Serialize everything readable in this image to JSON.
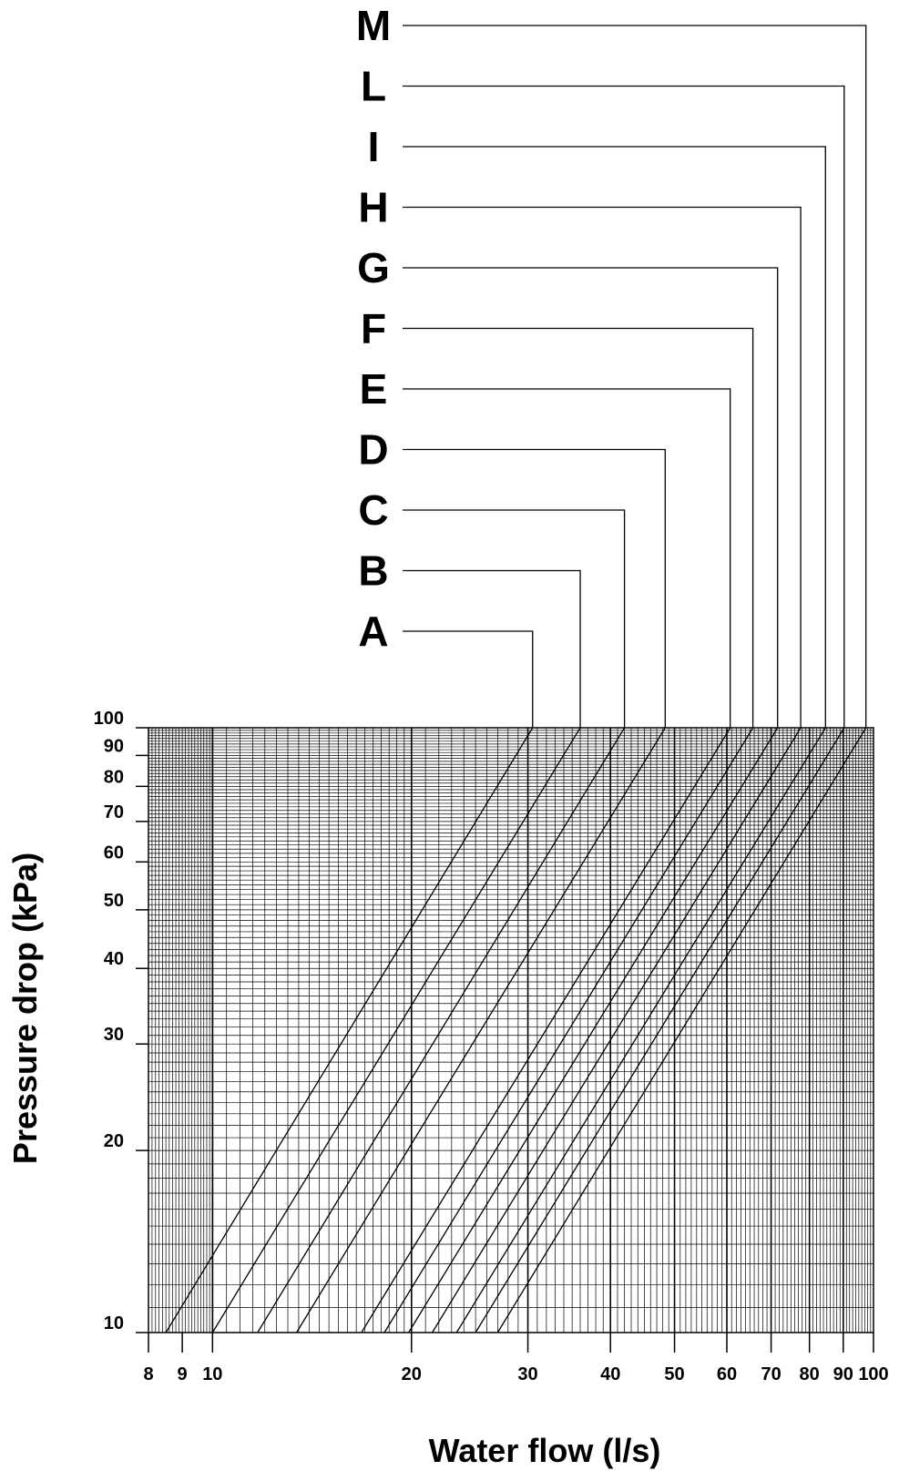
{
  "chart_data": {
    "type": "line",
    "xscale": "log",
    "yscale": "log",
    "xlabel": "Water flow (l/s)",
    "ylabel": "Pressure drop (kPa)",
    "xlim": [
      8,
      100
    ],
    "ylim": [
      10,
      100
    ],
    "grid": true,
    "x_ticks": [
      "8",
      "9",
      "10",
      "20",
      "30",
      "40",
      "50",
      "60",
      "70",
      "80",
      "90",
      "100"
    ],
    "y_ticks": [
      "10",
      "20",
      "30",
      "40",
      "50",
      "60",
      "70",
      "80",
      "90",
      "100"
    ],
    "series": [
      {
        "name": "A",
        "x": [
          8.5,
          30.5
        ]
      },
      {
        "name": "B",
        "x": [
          10.0,
          36.0
        ]
      },
      {
        "name": "C",
        "x": [
          11.7,
          42.0
        ]
      },
      {
        "name": "D",
        "x": [
          13.4,
          48.4
        ]
      },
      {
        "name": "E",
        "x": [
          16.8,
          60.7
        ]
      },
      {
        "name": "F",
        "x": [
          18.2,
          65.7
        ]
      },
      {
        "name": "G",
        "x": [
          19.8,
          71.6
        ]
      },
      {
        "name": "H",
        "x": [
          21.5,
          77.6
        ]
      },
      {
        "name": "I",
        "x": [
          23.4,
          84.6
        ]
      },
      {
        "name": "L",
        "x": [
          25.0,
          90.3
        ]
      },
      {
        "name": "M",
        "x": [
          27.0,
          97.4
        ]
      }
    ],
    "series_y": [
      10,
      100
    ]
  }
}
